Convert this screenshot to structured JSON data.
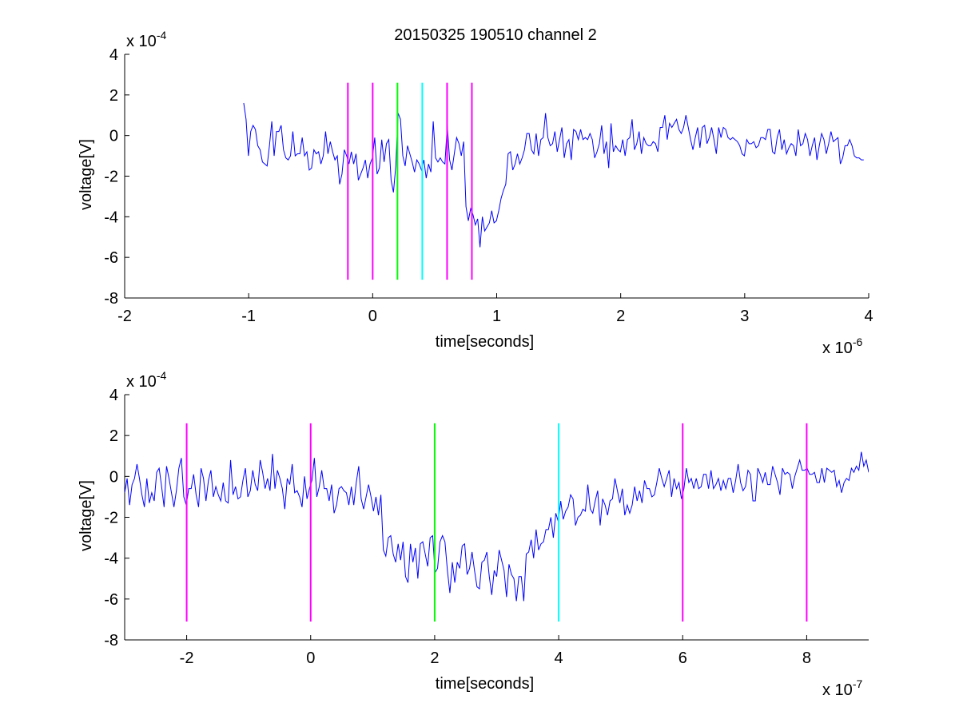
{
  "figure_title": "20150325 190510 channel 2",
  "colors": {
    "signal": "#0000ff",
    "magenta": "#ff00ff",
    "green": "#00ff00",
    "cyan": "#00ffff",
    "axes": "#000000"
  },
  "chart_data": [
    {
      "type": "line",
      "title": "20150325 190510 channel 2",
      "xlabel": "time[seconds]",
      "ylabel": "voltage[V]",
      "xlim": [
        -2e-06,
        4e-06
      ],
      "ylim": [
        -0.0008,
        0.0004
      ],
      "x_ticks": [
        -2e-06,
        -1e-06,
        0,
        1e-06,
        2e-06,
        3e-06,
        4e-06
      ],
      "x_tick_labels": [
        "-2",
        "-1",
        "0",
        "1",
        "2",
        "3",
        "4"
      ],
      "y_ticks": [
        -0.0008,
        -0.0006,
        -0.0004,
        -0.0002,
        0,
        0.0002,
        0.0004
      ],
      "y_tick_labels": [
        "-8",
        "-6",
        "-4",
        "-2",
        "0",
        "2",
        "4"
      ],
      "x_exponent_label": "x 10",
      "x_exponent": "-6",
      "y_exponent_label": "x 10",
      "y_exponent": "-4",
      "grid": false,
      "series": [
        {
          "x_range": [
            -1.04e-06,
            3.96e-06
          ],
          "values": [
            0.00016,
            8e-05,
            -0.0001,
            2e-05,
            5e-05,
            3e-05,
            -5e-05,
            -7e-05,
            -0.00013,
            -0.00014,
            -0.00015,
            -5e-05,
            7e-05,
            -0.0001,
            2e-05,
            2e-05,
            5e-05,
            -7e-05,
            -0.00011,
            -0.00012,
            -0.0001,
            2e-05,
            -0.0001,
            -9e-05,
            -9e-05,
            -1e-05,
            -0.0001,
            -8e-05,
            -0.00017,
            -0.00016,
            -7e-05,
            -9e-05,
            -8e-05,
            -0.00014,
            -0.0001,
            2e-05,
            -9e-05,
            -3e-05,
            -8e-05,
            -0.00012,
            -0.0001,
            -0.00024,
            -0.00019,
            -7e-05,
            -0.0001,
            -0.00014,
            -8e-05,
            -0.00014,
            -9e-05,
            -0.00022,
            -0.00019,
            -0.00016,
            -0.00012,
            -0.00021,
            -0.00014,
            -0.00011,
            -1e-05,
            -0.00019,
            -0.00016,
            -2e-05,
            -0.00013,
            -4e-05,
            -2e-05,
            -0.00022,
            -0.00028,
            -0.00015,
            0.00011,
            8e-05,
            -0.0001,
            -0.00015,
            -5e-05,
            -9e-05,
            -0.00013,
            -0.00018,
            -0.00012,
            -0.00014,
            -0.00017,
            -0.00012,
            -0.00021,
            -0.00014,
            -0.00018,
            7e-05,
            -0.00011,
            -0.00013,
            -0.00011,
            -0.00013,
            -0.00014,
            5e-05,
            -0.00012,
            -0.00017,
            -9e-05,
            -1e-05,
            -4e-05,
            -0.0001,
            -3e-05,
            -0.00035,
            -0.00042,
            -0.00036,
            -0.00039,
            -0.00044,
            -0.00041,
            -0.00055,
            -0.0004,
            -0.00047,
            -0.00045,
            -0.00043,
            -0.00037,
            -0.00043,
            -0.00042,
            -0.00037,
            -0.00031,
            -0.00027,
            -0.00024,
            -9e-05,
            -8e-05,
            -0.00017,
            -0.00014,
            -9e-05,
            -0.00014,
            -0.00011,
            -7e-05,
            1e-05,
            1e-05,
            -7e-05,
            -9e-05,
            1e-05,
            -0.0001,
            -2e-05,
            -1e-05,
            0.00011,
            -1e-05,
            -5e-05,
            -4e-05,
            2e-05,
            -8e-05,
            -2e-05,
            4e-05,
            -0.00011,
            -4e-05,
            -2e-05,
            -0.00012,
            3e-05,
            2e-05,
            -2e-05,
            3e-05,
            -2e-05,
            -1e-05,
            -2e-05,
            1e-05,
            -2e-05,
            -0.00011,
            -8e-05,
            -4e-05,
            5e-05,
            -9e-05,
            -3e-05,
            -0.00016,
            6e-05,
            -8e-05,
            -5e-05,
            -7e-05,
            -8e-05,
            -2e-05,
            -0.0001,
            -2e-05,
            -1e-05,
            8e-05,
            -7e-05,
            -4e-05,
            2e-05,
            -9e-05,
            -1e-05,
            -4e-05,
            -5e-05,
            -5e-05,
            -3e-05,
            -4e-05,
            -8e-05,
            4e-05,
            4e-05,
            0.0001,
            -2e-05,
            6e-05,
            4e-05,
            6e-05,
            8e-05,
            3e-05,
            1e-05,
            4e-05,
            0.0001,
            4e-05,
            -2e-05,
            -7e-05,
            -1e-05,
            4e-05,
            -6e-05,
            4e-05,
            5e-05,
            -4e-05,
            -1e-05,
            4e-05,
            -2e-05,
            -9e-05,
            4e-05,
            -1e-05,
            4e-05,
            3e-05,
            -1e-05,
            -2e-05,
            -1e-05,
            -2e-05,
            -3e-05,
            -5e-05,
            -9e-05,
            -0.0001,
            -2e-05,
            -4e-05,
            -4e-05,
            -3e-05,
            -6e-05,
            -5e-05,
            -1e-05,
            -1e-05,
            -2e-05,
            3e-05,
            3e-05,
            -8e-05,
            -9e-05,
            -1e-05,
            3e-05,
            -7e-05,
            -2e-05,
            -9e-05,
            -6e-05,
            -4e-05,
            -5e-05,
            -0.0001,
            3e-05,
            -5e-05,
            -4e-05,
            1e-05,
            -2e-05,
            -0.0001,
            -5e-05,
            -1e-05,
            -0.00012,
            -5e-05,
            1e-05,
            -2e-05,
            -9e-05,
            -4e-05,
            2e-05,
            -3e-05,
            -2e-05,
            -1e-05,
            -0.00014,
            -0.00011,
            -5e-05,
            -5e-05,
            -2e-05,
            -5e-05,
            -0.0001,
            -0.00011,
            -0.00011,
            -0.00012,
            -0.00012
          ],
          "color": "#0000ff"
        }
      ],
      "markers": [
        {
          "x": -2e-07,
          "color": "#ff00ff"
        },
        {
          "x": 0,
          "color": "#ff00ff"
        },
        {
          "x": 2e-07,
          "color": "#00ff00"
        },
        {
          "x": 4e-07,
          "color": "#00ffff"
        },
        {
          "x": 6e-07,
          "color": "#ff00ff"
        },
        {
          "x": 8e-07,
          "color": "#ff00ff"
        }
      ],
      "marker_range": [
        -0.00071,
        0.00026
      ]
    },
    {
      "type": "line",
      "xlabel": "time[seconds]",
      "ylabel": "voltage[V]",
      "xlim": [
        -3e-07,
        9e-07
      ],
      "ylim": [
        -0.0008,
        0.0004
      ],
      "x_ticks": [
        -2e-07,
        0,
        2e-07,
        4e-07,
        6e-07,
        8e-07
      ],
      "x_tick_labels": [
        "-2",
        "0",
        "2",
        "4",
        "6",
        "8"
      ],
      "y_ticks": [
        -0.0008,
        -0.0006,
        -0.0004,
        -0.0002,
        0,
        0.0002,
        0.0004
      ],
      "y_tick_labels": [
        "-8",
        "-6",
        "-4",
        "-2",
        "0",
        "2",
        "4"
      ],
      "x_exponent_label": "x 10",
      "x_exponent": "-7",
      "y_exponent_label": "x 10",
      "y_exponent": "-4",
      "grid": false,
      "series": [
        {
          "x_range": [
            -3e-07,
            9e-07
          ],
          "values": [
            -8e-05,
            -1e-05,
            -0.00014,
            -4e-05,
            -1e-05,
            6e-05,
            -1e-05,
            -9e-05,
            -0.00015,
            -1e-05,
            -0.00013,
            -8e-05,
            -0.00012,
            2e-05,
            4e-05,
            -5e-05,
            -0.00015,
            5e-05,
            -1e-05,
            -8e-05,
            -0.00015,
            -7e-05,
            4e-05,
            9e-05,
            -0.0001,
            -0.00014,
            -6e-05,
            -6e-05,
            1e-05,
            -9e-05,
            -0.00015,
            4e-05,
            -1e-05,
            -0.00012,
            -2e-05,
            3e-05,
            -0.0001,
            -5e-05,
            -9e-05,
            -0.00012,
            -3e-05,
            -0.00012,
            -0.00013,
            8e-05,
            -9e-05,
            -5e-05,
            -0.00011,
            -0.0001,
            -2e-05,
            4e-05,
            -0.0001,
            -7e-05,
            3e-05,
            -4e-05,
            -7e-05,
            8e-05,
            2e-05,
            -6e-05,
            -1e-05,
            -7e-05,
            0.00011,
            -6e-05,
            3e-05,
            -1e-05,
            -6e-05,
            -0.00016,
            -1e-05,
            -4e-05,
            6e-05,
            -8e-05,
            -7e-05,
            -0.0001,
            -0.00015,
            0,
            -0.00011,
            -6e-05,
            -2e-05,
            9e-05,
            -0.0001,
            -5e-05,
            3e-05,
            -6e-05,
            -6e-05,
            -0.00012,
            -4e-05,
            -0.00018,
            -0.00014,
            -6e-05,
            -5e-05,
            -7e-05,
            -8e-05,
            -0.00014,
            -5e-05,
            -0.00014,
            -3e-05,
            5e-05,
            -0.00011,
            -0.00016,
            -0.0001,
            -4e-05,
            -0.0001,
            -0.00017,
            -0.0001,
            -0.00019,
            -9e-05,
            -0.00036,
            -0.00039,
            -0.0003,
            -0.00029,
            -0.00038,
            -0.00042,
            -0.00033,
            -0.00041,
            -0.00032,
            -0.00049,
            -0.00052,
            -0.00033,
            -0.00042,
            -0.00035,
            -0.0005,
            -0.00033,
            -0.00032,
            -0.00038,
            -0.00044,
            -0.0003,
            -0.00029,
            -0.00047,
            -0.00045,
            -0.00032,
            -0.00029,
            -0.00032,
            -0.00046,
            -0.00057,
            -0.00042,
            -0.00052,
            -0.00042,
            -0.00045,
            -0.00034,
            -0.00033,
            -0.00048,
            -0.00045,
            -0.00037,
            -0.00046,
            -0.00054,
            -0.00055,
            -0.00042,
            -0.00041,
            -0.00037,
            -0.00049,
            -0.00058,
            -0.00046,
            -0.00049,
            -0.00036,
            -0.00041,
            -0.00046,
            -0.00059,
            -0.00043,
            -0.00048,
            -0.0005,
            -0.00061,
            -0.00049,
            -0.00049,
            -0.00061,
            -0.00038,
            -0.00037,
            -0.00031,
            -0.0004,
            -0.00026,
            -0.00036,
            -0.00033,
            -0.00032,
            -0.00026,
            -0.00026,
            -0.0002,
            -0.0003,
            -0.00018,
            -0.00022,
            -0.00012,
            -0.00021,
            -0.00017,
            -0.00015,
            -9e-05,
            -0.00011,
            -0.00024,
            -0.0002,
            -0.00019,
            -0.00016,
            -0.00017,
            -4e-05,
            -0.00016,
            -0.00018,
            -0.00012,
            -7e-05,
            -0.00024,
            -0.00011,
            -0.00014,
            -0.00019,
            -0.00012,
            -0.00011,
            -1e-05,
            -7e-05,
            -0.00013,
            -6e-05,
            -0.00019,
            -0.00014,
            -0.00018,
            -0.00014,
            -5e-05,
            -0.00012,
            -7e-05,
            -0.00013,
            -2e-05,
            -6e-05,
            -6e-05,
            -0.0001,
            -9e-05,
            -3e-05,
            4e-05,
            -1e-05,
            -5e-05,
            -1e-05,
            3e-05,
            -0.0001,
            -1e-05,
            -6e-05,
            -3e-05,
            -0.00011,
            -6e-05,
            4e-05,
            -3e-05,
            -1e-05,
            -6e-05,
            -1e-05,
            -6e-05,
            -5e-05,
            1e-05,
            1e-05,
            -6e-05,
            3e-05,
            -6e-05,
            -4e-05,
            -1e-05,
            -7e-05,
            -2e-05,
            -6e-05,
            -1e-05,
            -1e-05,
            -8e-05,
            -2e-05,
            6e-05,
            -3e-05,
            -7e-05,
            -5e-05,
            3e-05,
            1e-05,
            -0.00012,
            -0.00012,
            4e-05,
            1e-05,
            -3e-05,
            2e-05,
            -4e-05,
            -4e-05,
            5e-05,
            1e-05,
            -3e-05,
            -9e-05,
            4e-05,
            1e-05,
            2e-05,
            1e-05,
            -6e-05,
            0,
            4e-05,
            8e-05,
            3e-05,
            3e-05,
            4e-05,
            1e-05,
            1e-05,
            2e-05,
            -3e-05,
            -3e-05,
            4e-05,
            -3e-05,
            4e-05,
            3e-05,
            2e-05,
            3e-05,
            -5e-05,
            -2e-05,
            -8e-05,
            -3e-05,
            -1e-05,
            -2e-05,
            4e-05,
            2e-05,
            5e-05,
            3e-05,
            0.00012,
            5e-05,
            8e-05,
            2e-05
          ],
          "color": "#0000ff"
        }
      ],
      "markers": [
        {
          "x": -2e-07,
          "color": "#ff00ff"
        },
        {
          "x": 0,
          "color": "#ff00ff"
        },
        {
          "x": 2e-07,
          "color": "#00ff00"
        },
        {
          "x": 4e-07,
          "color": "#00ffff"
        },
        {
          "x": 6e-07,
          "color": "#ff00ff"
        },
        {
          "x": 8e-07,
          "color": "#ff00ff"
        }
      ],
      "marker_range": [
        -0.00071,
        0.00026
      ]
    }
  ]
}
